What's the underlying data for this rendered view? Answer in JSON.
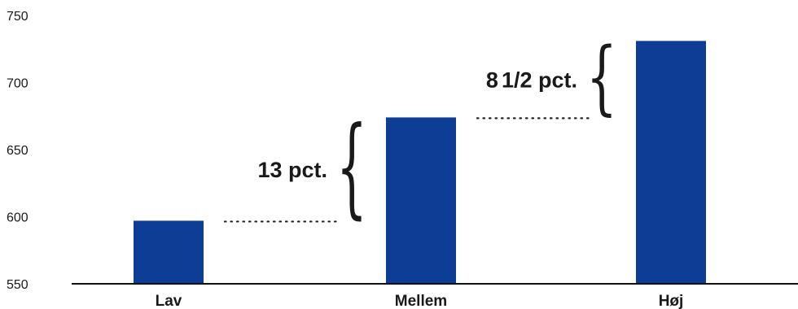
{
  "chart_data": {
    "type": "bar",
    "title": "",
    "xlabel": "",
    "ylabel": "",
    "categories": [
      "Lav",
      "Mellem",
      "Høj"
    ],
    "values": [
      597,
      674,
      731
    ],
    "ylim": [
      550,
      750
    ],
    "yticks": [
      550,
      600,
      650,
      700,
      750
    ],
    "bar_color": "#0d3d94",
    "grid": false,
    "annotations": [
      {
        "from": "Lav",
        "to": "Mellem",
        "main": "13 pct.",
        "frac": ""
      },
      {
        "from": "Mellem",
        "to": "Høj",
        "main": "8",
        "frac": "1/2 pct."
      }
    ]
  }
}
